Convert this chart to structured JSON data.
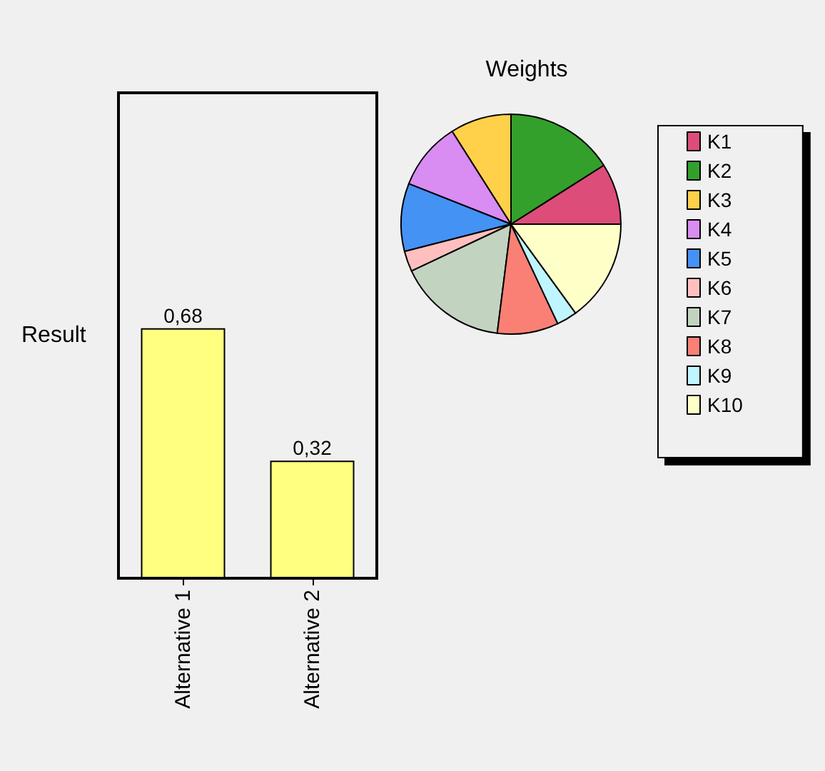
{
  "chart_data": [
    {
      "type": "bar",
      "ylabel": "Result",
      "categories": [
        "Alternative 1",
        "Alternative 2"
      ],
      "values": [
        0.68,
        0.32
      ],
      "value_labels": [
        "0,68",
        "0,32"
      ],
      "color": "#ffff80",
      "tick_labels": "x"
    },
    {
      "type": "pie",
      "title": "Weights",
      "categories": [
        "K1",
        "K2",
        "K3",
        "K4",
        "K5",
        "K6",
        "K7",
        "K8",
        "K9",
        "K10"
      ],
      "values": [
        9,
        16,
        9,
        10,
        10,
        3,
        16,
        9,
        3,
        15
      ],
      "colors": [
        "#dc4d7a",
        "#33a02c",
        "#ffd04a",
        "#d98cf2",
        "#4592f5",
        "#ffbfbf",
        "#c2d4c0",
        "#fa8075",
        "#bff5ff",
        "#ffffc8"
      ],
      "legend": "right"
    }
  ]
}
